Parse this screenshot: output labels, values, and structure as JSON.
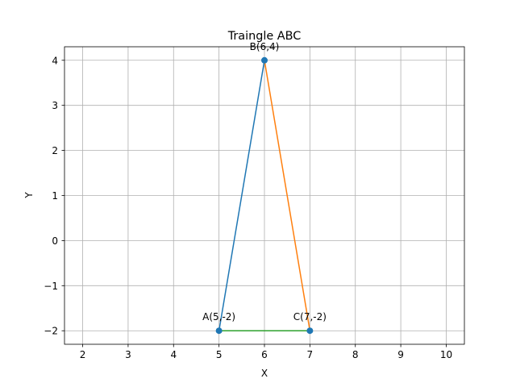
{
  "chart_data": {
    "type": "line",
    "title": "Traingle ABC",
    "xlabel": "X",
    "ylabel": "Y",
    "xlim": [
      1.6,
      10.4
    ],
    "ylim": [
      -2.3,
      4.3
    ],
    "x_ticks": [
      2,
      3,
      4,
      5,
      6,
      7,
      8,
      9,
      10
    ],
    "y_ticks": [
      -2,
      -1,
      0,
      1,
      2,
      3,
      4
    ],
    "grid": true,
    "points": [
      {
        "label": "A(5,-2)",
        "x": 5,
        "y": -2
      },
      {
        "label": "B(6,4)",
        "x": 6,
        "y": 4
      },
      {
        "label": "C(7,-2)",
        "x": 7,
        "y": -2
      }
    ],
    "series": [
      {
        "x": [
          5,
          6
        ],
        "y": [
          -2,
          4
        ],
        "color": "#1f77b4"
      },
      {
        "x": [
          6,
          7
        ],
        "y": [
          4,
          -2
        ],
        "color": "#ff7f0e"
      },
      {
        "x": [
          7,
          5
        ],
        "y": [
          -2,
          -2
        ],
        "color": "#2ca02c"
      }
    ],
    "point_color": "#1f77b4"
  }
}
